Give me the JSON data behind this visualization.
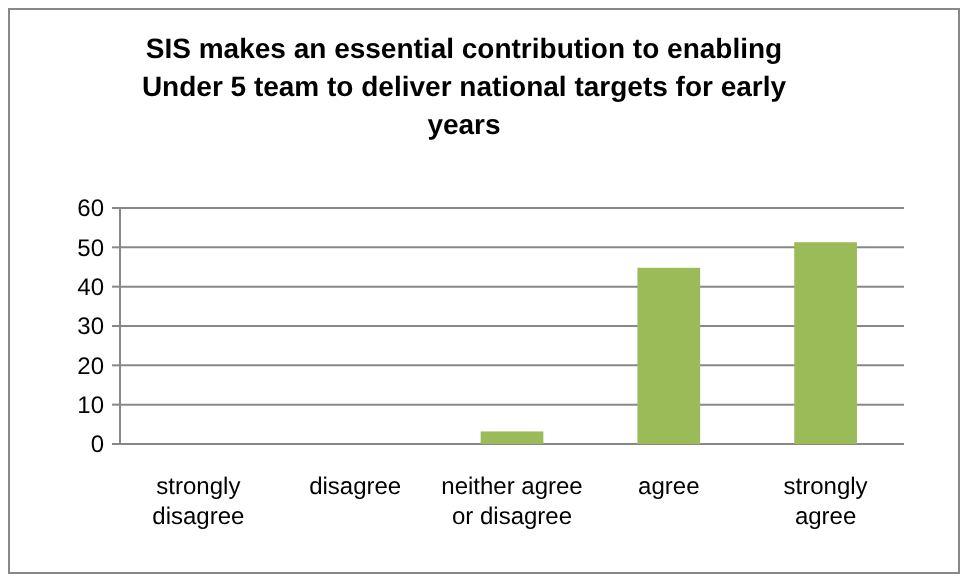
{
  "chart_data": {
    "type": "bar",
    "title": "SIS makes an essential contribution to enabling Under 5 team to deliver national targets for early years",
    "categories": [
      "strongly disagree",
      "disagree",
      "neither agree or disagree",
      "agree",
      "strongly agree"
    ],
    "values": [
      0,
      0,
      3.2,
      44.8,
      51.3
    ],
    "color": "#9bbb59",
    "ylim": [
      0,
      60
    ],
    "yticks": [
      0,
      10,
      20,
      30,
      40,
      50,
      60
    ],
    "grid": "y"
  }
}
